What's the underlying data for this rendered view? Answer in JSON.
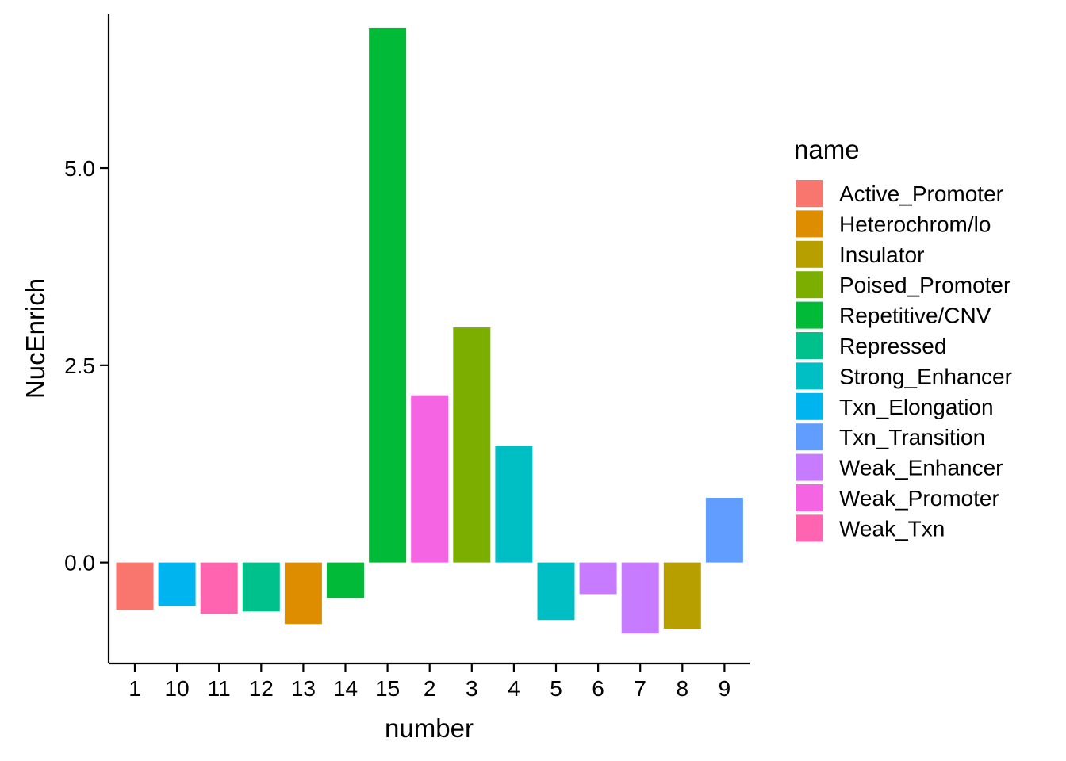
{
  "chart_data": {
    "type": "bar",
    "xlabel": "number",
    "ylabel": "NucEnrich",
    "ylim": [
      -1.28,
      6.95
    ],
    "yticks": [
      0.0,
      2.5,
      5.0
    ],
    "ytick_labels": [
      "0.0",
      "2.5",
      "5.0"
    ],
    "grid": false,
    "legend_position": "right",
    "legend_title": "name",
    "categories": [
      "1",
      "10",
      "11",
      "12",
      "13",
      "14",
      "15",
      "2",
      "3",
      "4",
      "5",
      "6",
      "7",
      "8",
      "9"
    ],
    "values": [
      -0.6,
      -0.55,
      -0.65,
      -0.62,
      -0.78,
      -0.45,
      6.78,
      2.12,
      2.98,
      1.48,
      -0.73,
      -0.4,
      -0.9,
      -0.84,
      0.82
    ],
    "bar_names": [
      "Active_Promoter",
      "Txn_Elongation",
      "Weak_Txn",
      "Repressed",
      "Heterochrom/lo",
      "Repetitive/CNV",
      "Repetitive/CNV",
      "Weak_Promoter",
      "Poised_Promoter",
      "Strong_Enhancer",
      "Strong_Enhancer",
      "Weak_Enhancer",
      "Weak_Enhancer",
      "Insulator",
      "Txn_Transition"
    ],
    "legend": [
      {
        "name": "Active_Promoter",
        "color": "#F8766D"
      },
      {
        "name": "Heterochrom/lo",
        "color": "#DE8C00"
      },
      {
        "name": "Insulator",
        "color": "#B79F00"
      },
      {
        "name": "Poised_Promoter",
        "color": "#7CAE00"
      },
      {
        "name": "Repetitive/CNV",
        "color": "#00BA38"
      },
      {
        "name": "Repressed",
        "color": "#00C08B"
      },
      {
        "name": "Strong_Enhancer",
        "color": "#00BFC4"
      },
      {
        "name": "Txn_Elongation",
        "color": "#00B4F0"
      },
      {
        "name": "Txn_Transition",
        "color": "#619CFF"
      },
      {
        "name": "Weak_Enhancer",
        "color": "#C77CFF"
      },
      {
        "name": "Weak_Promoter",
        "color": "#F564E3"
      },
      {
        "name": "Weak_Txn",
        "color": "#FF64B0"
      }
    ]
  }
}
